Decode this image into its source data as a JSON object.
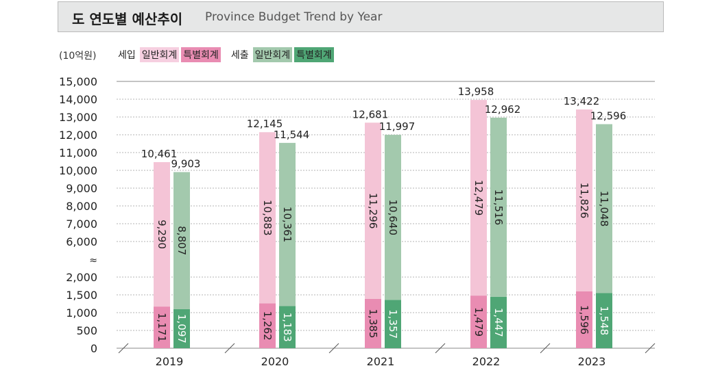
{
  "header": {
    "title_ko": "도 연도별 예산추이",
    "title_en": "Province Budget Trend by Year"
  },
  "unit_label": "(10억원)",
  "legend": {
    "revenue_label": "세입",
    "expenditure_label": "세출",
    "general_label": "일반회계",
    "special_label": "특별회계"
  },
  "colors": {
    "revenue_general": "#f4c4d6",
    "revenue_special": "#e98cb2",
    "expenditure_general": "#a3c9ad",
    "expenditure_special": "#4fa675",
    "legend_revenue_general": "#f6cfe0",
    "legend_revenue_special": "#e98cb2",
    "legend_expenditure_general": "#a3c9ad",
    "legend_expenditure_special": "#4fa675"
  },
  "chart_data": {
    "type": "bar",
    "stacked": true,
    "grouped": true,
    "categories": [
      "2019",
      "2020",
      "2021",
      "2022",
      "2023"
    ],
    "y_ticks": [
      "15,000",
      "14,000",
      "13,000",
      "12,000",
      "11,000",
      "10,000",
      "9,000",
      "8,000",
      "7,000",
      "6,000",
      "≈",
      "2,000",
      "1,500",
      "1,000",
      "500",
      "0"
    ],
    "axis_break": {
      "lower_range": [
        0,
        2000
      ],
      "upper_range": [
        6000,
        15000
      ]
    },
    "grid": true,
    "groups": [
      {
        "name": "세입",
        "totals": [
          10461,
          12145,
          12681,
          13958,
          13422
        ],
        "totals_labels": [
          "10,461",
          "12,145",
          "12,681",
          "13,958",
          "13,422"
        ],
        "series": [
          {
            "name": "특별회계",
            "values": [
              1171,
              1262,
              1385,
              1479,
              1596
            ],
            "labels": [
              "1,171",
              "1,262",
              "1,385",
              "1,479",
              "1,596"
            ]
          },
          {
            "name": "일반회계",
            "values": [
              9290,
              10883,
              11296,
              12479,
              11826
            ],
            "labels": [
              "9,290",
              "10,883",
              "11,296",
              "12,479",
              "11,826"
            ]
          }
        ]
      },
      {
        "name": "세출",
        "totals": [
          9903,
          11544,
          11997,
          12962,
          12596
        ],
        "totals_labels": [
          "9,903",
          "11,544",
          "11,997",
          "12,962",
          "12,596"
        ],
        "series": [
          {
            "name": "특별회계",
            "values": [
              1097,
              1183,
              1357,
              1447,
              1548
            ],
            "labels": [
              "1,097",
              "1,183",
              "1,357",
              "1,447",
              "1,548"
            ]
          },
          {
            "name": "일반회계",
            "values": [
              8807,
              10361,
              10640,
              11516,
              11048
            ],
            "labels": [
              "8,807",
              "10,361",
              "10,640",
              "11,516",
              "11,048"
            ]
          }
        ]
      }
    ]
  }
}
